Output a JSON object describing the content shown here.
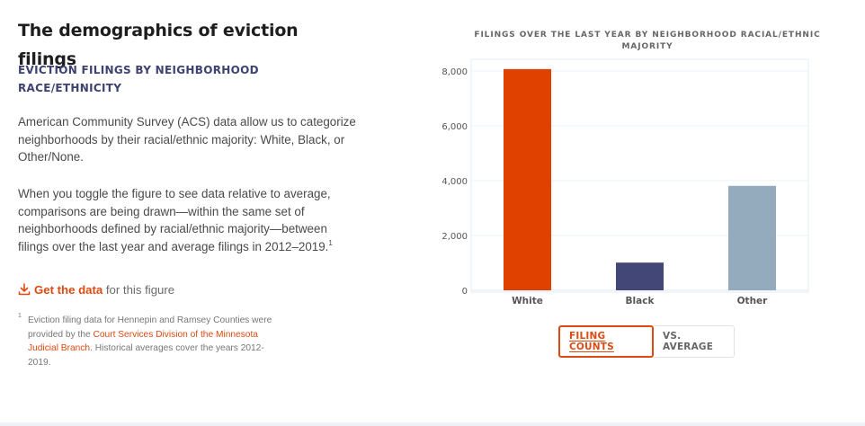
{
  "page": {
    "title": "The demographics of eviction filings",
    "subheading": "EVICTION FILINGS BY NEIGHBORHOOD RACE/ETHNICITY",
    "paragraph1": "American Community Survey (ACS) data allow us to categorize neighborhoods by their racial/ethnic majority: White, Black, or Other/None.",
    "paragraph2": "When you toggle the figure to see data relative to average, comparisons are being drawn—within the same set of neighborhoods defined by racial/ethnic majority—between filings over the last year and average filings in 2012–2019.",
    "paragraph2_footnote_ref": "1",
    "get_data": {
      "icon": "download-icon",
      "link_label": "Get the data",
      "suffix": " for this figure"
    },
    "footnote": {
      "marker": "1",
      "text_before": "Eviction filing data for Hennepin and Ramsey Counties were provided by the ",
      "link_label": "Court Services Division of the Minnesota Judicial Branch",
      "text_after": ". Historical averages cover the years 2012-2019."
    }
  },
  "toggle": {
    "options": [
      {
        "label": "FILING COUNTS",
        "active": true
      },
      {
        "label": "VS. AVERAGE",
        "active": false
      }
    ]
  },
  "colors": {
    "accent": "#dd4a12",
    "white_bar": "#e04000",
    "black_bar": "#434777",
    "other_bar": "#94aabd",
    "subheading": "#3d4270"
  },
  "chart_data": {
    "type": "bar",
    "title": "FILINGS OVER THE LAST YEAR BY NEIGHBORHOOD RACIAL/ETHNIC MAJORITY",
    "xlabel": "",
    "ylabel": "",
    "categories": [
      "White",
      "Black",
      "Other"
    ],
    "values": [
      8070,
      1010,
      3810
    ],
    "bar_colors": [
      "#e04000",
      "#434777",
      "#94aabd"
    ],
    "ylim": [
      0,
      8500
    ],
    "yticks": [
      0,
      2000,
      4000,
      6000,
      8000
    ],
    "ytick_labels": [
      "0",
      "2,000",
      "4,000",
      "6,000",
      "8,000"
    ],
    "grid": true,
    "legend": "none"
  }
}
